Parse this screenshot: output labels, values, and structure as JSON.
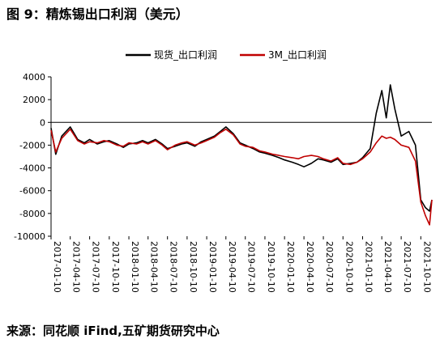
{
  "header": {
    "title": "图 9：精炼锡出口利润（美元）"
  },
  "footer": {
    "source": "来源：同花顺 iFind,五矿期货研究中心"
  },
  "chart_data": {
    "type": "line",
    "title": "",
    "xlabel": "",
    "ylabel": "",
    "ylim": [
      -10000,
      4000
    ],
    "yticks": [
      4000,
      2000,
      0,
      -2000,
      -4000,
      -6000,
      -8000,
      -10000
    ],
    "xticks": [
      "2017-01-10",
      "2017-04-10",
      "2017-07-10",
      "2017-10-10",
      "2018-01-10",
      "2018-04-10",
      "2018-07-10",
      "2018-10-10",
      "2019-01-10",
      "2019-04-10",
      "2019-07-10",
      "2019-10-10",
      "2020-01-10",
      "2020-04-10",
      "2020-07-10",
      "2020-10-10",
      "2021-01-10",
      "2021-04-10",
      "2021-07-10",
      "2021-10-10"
    ],
    "legend_position": "top",
    "grid": false,
    "series": [
      {
        "name": "现货_出口利润",
        "color": "#000000",
        "x": [
          "2017-01-10",
          "2017-02-01",
          "2017-03-01",
          "2017-04-10",
          "2017-05-15",
          "2017-06-15",
          "2017-07-10",
          "2017-08-15",
          "2017-09-15",
          "2017-10-10",
          "2017-11-15",
          "2017-12-15",
          "2018-01-10",
          "2018-02-15",
          "2018-03-15",
          "2018-04-10",
          "2018-05-15",
          "2018-06-15",
          "2018-07-10",
          "2018-08-15",
          "2018-09-15",
          "2018-10-10",
          "2018-11-15",
          "2018-12-15",
          "2019-01-10",
          "2019-02-15",
          "2019-03-15",
          "2019-04-10",
          "2019-05-15",
          "2019-06-15",
          "2019-07-10",
          "2019-08-15",
          "2019-09-15",
          "2019-10-10",
          "2019-11-15",
          "2019-12-15",
          "2020-01-10",
          "2020-02-15",
          "2020-03-15",
          "2020-04-10",
          "2020-05-15",
          "2020-06-15",
          "2020-07-10",
          "2020-08-15",
          "2020-09-15",
          "2020-10-10",
          "2020-11-15",
          "2020-12-15",
          "2021-01-10",
          "2021-02-15",
          "2021-03-15",
          "2021-04-10",
          "2021-05-01",
          "2021-05-20",
          "2021-06-10",
          "2021-07-10",
          "2021-08-15",
          "2021-09-15",
          "2021-10-10",
          "2021-11-01",
          "2021-11-20",
          "2021-12-01"
        ],
        "values": [
          -500,
          -2800,
          -1200,
          -400,
          -1500,
          -1800,
          -1500,
          -1900,
          -1700,
          -1600,
          -1900,
          -2200,
          -1900,
          -1800,
          -1600,
          -1800,
          -1500,
          -1900,
          -2300,
          -2100,
          -1900,
          -1800,
          -2100,
          -1700,
          -1500,
          -1200,
          -800,
          -400,
          -1000,
          -1800,
          -2000,
          -2300,
          -2600,
          -2700,
          -2900,
          -3100,
          -3300,
          -3500,
          -3700,
          -3900,
          -3600,
          -3200,
          -3300,
          -3500,
          -3200,
          -3700,
          -3600,
          -3500,
          -3100,
          -2300,
          800,
          2800,
          400,
          3300,
          1200,
          -1200,
          -800,
          -2000,
          -6800,
          -7500,
          -7800,
          -6800
        ]
      },
      {
        "name": "3M_出口利润",
        "color": "#c00000",
        "x": [
          "2017-01-10",
          "2017-02-01",
          "2017-03-01",
          "2017-04-10",
          "2017-05-15",
          "2017-06-15",
          "2017-07-10",
          "2017-08-15",
          "2017-09-15",
          "2017-10-10",
          "2017-11-15",
          "2017-12-15",
          "2018-01-10",
          "2018-02-15",
          "2018-03-15",
          "2018-04-10",
          "2018-05-15",
          "2018-06-15",
          "2018-07-10",
          "2018-08-15",
          "2018-09-15",
          "2018-10-10",
          "2018-11-15",
          "2018-12-15",
          "2019-01-10",
          "2019-02-15",
          "2019-03-15",
          "2019-04-10",
          "2019-05-15",
          "2019-06-15",
          "2019-07-10",
          "2019-08-15",
          "2019-09-15",
          "2019-10-10",
          "2019-11-15",
          "2019-12-15",
          "2020-01-10",
          "2020-02-15",
          "2020-03-15",
          "2020-04-10",
          "2020-05-15",
          "2020-06-15",
          "2020-07-10",
          "2020-08-15",
          "2020-09-15",
          "2020-10-10",
          "2020-11-15",
          "2020-12-15",
          "2021-01-10",
          "2021-02-15",
          "2021-03-15",
          "2021-04-10",
          "2021-05-01",
          "2021-05-20",
          "2021-06-10",
          "2021-07-10",
          "2021-08-15",
          "2021-09-15",
          "2021-10-10",
          "2021-11-01",
          "2021-11-20",
          "2021-12-01"
        ],
        "values": [
          -700,
          -2600,
          -1400,
          -600,
          -1600,
          -1900,
          -1700,
          -1800,
          -1600,
          -1700,
          -2000,
          -2100,
          -1800,
          -1900,
          -1700,
          -1900,
          -1600,
          -2000,
          -2400,
          -2000,
          -1800,
          -1700,
          -2000,
          -1800,
          -1600,
          -1300,
          -900,
          -600,
          -1100,
          -1900,
          -2100,
          -2200,
          -2500,
          -2600,
          -2800,
          -2900,
          -3000,
          -3100,
          -3200,
          -3000,
          -2900,
          -3000,
          -3200,
          -3400,
          -3100,
          -3600,
          -3700,
          -3500,
          -3200,
          -2600,
          -1800,
          -1200,
          -1400,
          -1300,
          -1500,
          -2000,
          -2200,
          -3400,
          -7000,
          -8200,
          -9000,
          -6800
        ]
      }
    ]
  }
}
